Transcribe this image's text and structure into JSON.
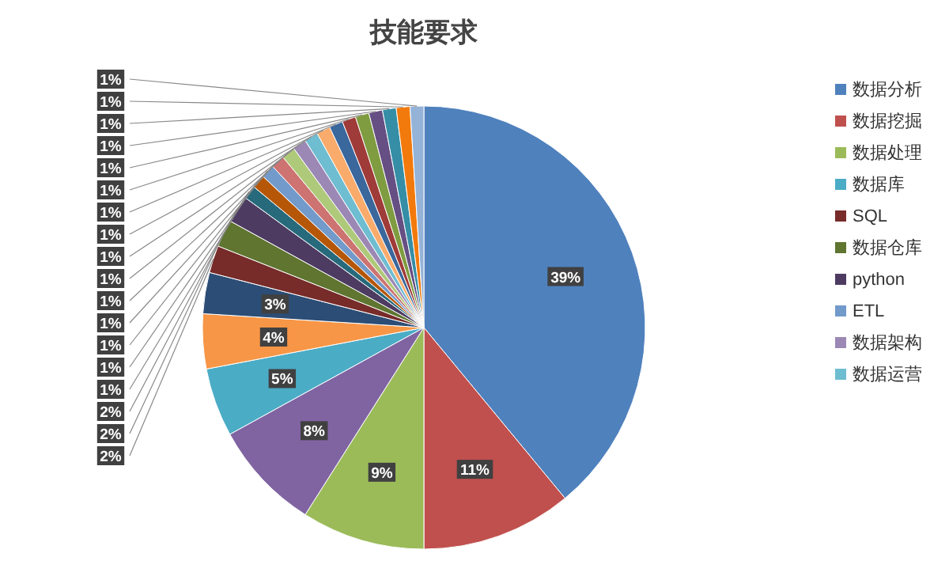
{
  "chart_data": {
    "type": "pie",
    "title": "技能要求",
    "categories": [
      "数据分析",
      "数据挖掘",
      "数据处理",
      null,
      "数据库",
      null,
      null,
      "SQL",
      "数据仓库",
      "python",
      null,
      null,
      "ETL",
      null,
      null,
      "数据架构",
      "数据运营",
      null,
      null,
      null,
      null,
      null,
      null,
      null,
      null
    ],
    "values": [
      39,
      11,
      9,
      8,
      5,
      4,
      3,
      2,
      2,
      2,
      1,
      1,
      1,
      1,
      1,
      1,
      1,
      1,
      1,
      1,
      1,
      1,
      1,
      1,
      1
    ],
    "value_labels": [
      "39%",
      "11%",
      "9%",
      "8%",
      "5%",
      "4%",
      "3%",
      "2%",
      "2%",
      "2%",
      "1%",
      "1%",
      "1%",
      "1%",
      "1%",
      "1%",
      "1%",
      "1%",
      "1%",
      "1%",
      "1%",
      "1%",
      "1%",
      "1%",
      "1%"
    ],
    "colors": [
      "#4f81bd",
      "#c0504d",
      "#9bbb59",
      "#8064a2",
      "#4bacc6",
      "#f79646",
      "#2c4d75",
      "#772c2a",
      "#5f7530",
      "#4d3b62",
      "#276a7c",
      "#b65708",
      "#729aca",
      "#cd7371",
      "#afc97a",
      "#9c88b5",
      "#6fbdd1",
      "#f9ab6b",
      "#3a679c",
      "#9f3b38",
      "#7f9c40",
      "#664f83",
      "#358ea6",
      "#f27a0c",
      "#95b3d7"
    ],
    "legend": "right"
  }
}
